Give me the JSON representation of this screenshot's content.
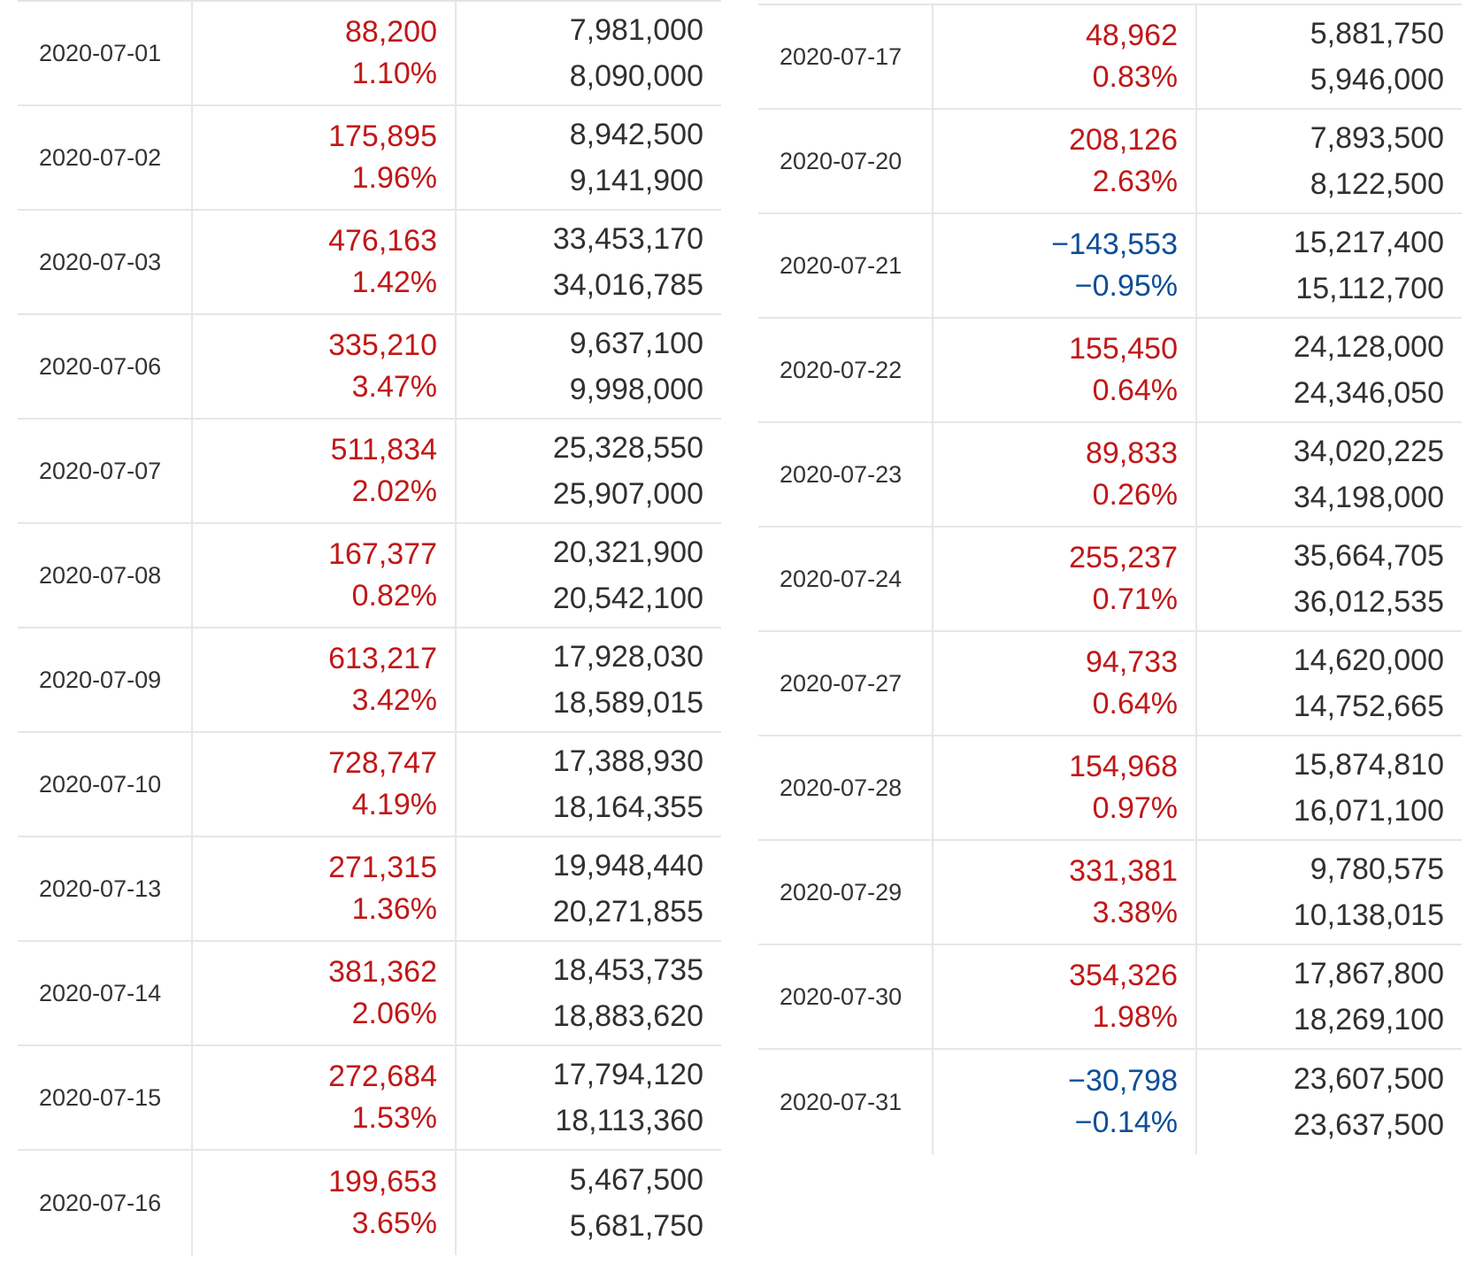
{
  "colors": {
    "increase": "#c01818",
    "decrease": "#0d4e96",
    "text": "#303030",
    "divider": "#e6e6e6"
  },
  "left_table": {
    "rows": [
      {
        "date": "2020-07-01",
        "change": "88,200",
        "percent": "1.10%",
        "direction": "up",
        "value1": "7,981,000",
        "value2": "8,090,000"
      },
      {
        "date": "2020-07-02",
        "change": "175,895",
        "percent": "1.96%",
        "direction": "up",
        "value1": "8,942,500",
        "value2": "9,141,900"
      },
      {
        "date": "2020-07-03",
        "change": "476,163",
        "percent": "1.42%",
        "direction": "up",
        "value1": "33,453,170",
        "value2": "34,016,785"
      },
      {
        "date": "2020-07-06",
        "change": "335,210",
        "percent": "3.47%",
        "direction": "up",
        "value1": "9,637,100",
        "value2": "9,998,000"
      },
      {
        "date": "2020-07-07",
        "change": "511,834",
        "percent": "2.02%",
        "direction": "up",
        "value1": "25,328,550",
        "value2": "25,907,000"
      },
      {
        "date": "2020-07-08",
        "change": "167,377",
        "percent": "0.82%",
        "direction": "up",
        "value1": "20,321,900",
        "value2": "20,542,100"
      },
      {
        "date": "2020-07-09",
        "change": "613,217",
        "percent": "3.42%",
        "direction": "up",
        "value1": "17,928,030",
        "value2": "18,589,015"
      },
      {
        "date": "2020-07-10",
        "change": "728,747",
        "percent": "4.19%",
        "direction": "up",
        "value1": "17,388,930",
        "value2": "18,164,355"
      },
      {
        "date": "2020-07-13",
        "change": "271,315",
        "percent": "1.36%",
        "direction": "up",
        "value1": "19,948,440",
        "value2": "20,271,855"
      },
      {
        "date": "2020-07-14",
        "change": "381,362",
        "percent": "2.06%",
        "direction": "up",
        "value1": "18,453,735",
        "value2": "18,883,620"
      },
      {
        "date": "2020-07-15",
        "change": "272,684",
        "percent": "1.53%",
        "direction": "up",
        "value1": "17,794,120",
        "value2": "18,113,360"
      },
      {
        "date": "2020-07-16",
        "change": "199,653",
        "percent": "3.65%",
        "direction": "up",
        "value1": "5,467,500",
        "value2": "5,681,750"
      }
    ]
  },
  "right_table": {
    "rows": [
      {
        "date": "2020-07-17",
        "change": "48,962",
        "percent": "0.83%",
        "direction": "up",
        "value1": "5,881,750",
        "value2": "5,946,000"
      },
      {
        "date": "2020-07-20",
        "change": "208,126",
        "percent": "2.63%",
        "direction": "up",
        "value1": "7,893,500",
        "value2": "8,122,500"
      },
      {
        "date": "2020-07-21",
        "change": "−143,553",
        "percent": "−0.95%",
        "direction": "down",
        "value1": "15,217,400",
        "value2": "15,112,700"
      },
      {
        "date": "2020-07-22",
        "change": "155,450",
        "percent": "0.64%",
        "direction": "up",
        "value1": "24,128,000",
        "value2": "24,346,050"
      },
      {
        "date": "2020-07-23",
        "change": "89,833",
        "percent": "0.26%",
        "direction": "up",
        "value1": "34,020,225",
        "value2": "34,198,000"
      },
      {
        "date": "2020-07-24",
        "change": "255,237",
        "percent": "0.71%",
        "direction": "up",
        "value1": "35,664,705",
        "value2": "36,012,535"
      },
      {
        "date": "2020-07-27",
        "change": "94,733",
        "percent": "0.64%",
        "direction": "up",
        "value1": "14,620,000",
        "value2": "14,752,665"
      },
      {
        "date": "2020-07-28",
        "change": "154,968",
        "percent": "0.97%",
        "direction": "up",
        "value1": "15,874,810",
        "value2": "16,071,100"
      },
      {
        "date": "2020-07-29",
        "change": "331,381",
        "percent": "3.38%",
        "direction": "up",
        "value1": "9,780,575",
        "value2": "10,138,015"
      },
      {
        "date": "2020-07-30",
        "change": "354,326",
        "percent": "1.98%",
        "direction": "up",
        "value1": "17,867,800",
        "value2": "18,269,100"
      },
      {
        "date": "2020-07-31",
        "change": "−30,798",
        "percent": "−0.14%",
        "direction": "down",
        "value1": "23,607,500",
        "value2": "23,637,500"
      }
    ]
  }
}
